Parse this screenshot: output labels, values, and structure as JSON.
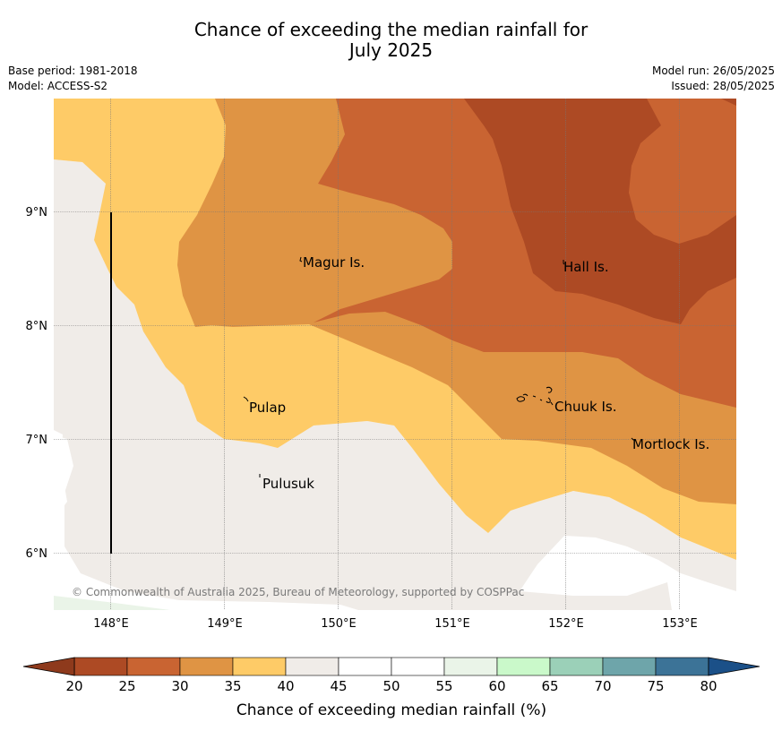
{
  "title": {
    "line1": "Chance of exceeding the median rainfall for",
    "line2": "July 2025"
  },
  "meta": {
    "base_period": "Base period: 1981-2018",
    "model": "Model: ACCESS-S2",
    "model_run": "Model run: 26/05/2025",
    "issued": "Issued: 28/05/2025"
  },
  "map": {
    "lat_labels": [
      "9°N",
      "8°N",
      "7°N",
      "6°N"
    ],
    "lon_labels": [
      "148°E",
      "149°E",
      "150°E",
      "151°E",
      "152°E",
      "153°E"
    ],
    "places": [
      "Magur Is.",
      "Hall Is.",
      "Pulap",
      "Chuuk Is.",
      "Mortlock Is.",
      "Pulusuk"
    ],
    "copyright": "© Commonwealth of Australia 2025, Bureau of Meteorology, supported by COSPPac"
  },
  "colorbar": {
    "label": "Chance of exceeding median rainfall (%)",
    "ticks": [
      "20",
      "25",
      "30",
      "35",
      "40",
      "45",
      "50",
      "55",
      "60",
      "65",
      "70",
      "75",
      "80"
    ],
    "colors": [
      "#ad4a24",
      "#c96432",
      "#df9444",
      "#fecb67",
      "#f0ece8",
      "#ffffff",
      "#ffffff",
      "#eaf4e8",
      "#caf9ca",
      "#9bd0b8",
      "#6ea5aa",
      "#3c7397"
    ],
    "under_color": "#8e3a1c",
    "over_color": "#1b5088"
  },
  "legend_colors": {
    "20-25": "#ad4a24",
    "25-30": "#c96432",
    "30-35": "#df9444",
    "35-40": "#fecb67",
    "40-45": "#f0ece8"
  }
}
